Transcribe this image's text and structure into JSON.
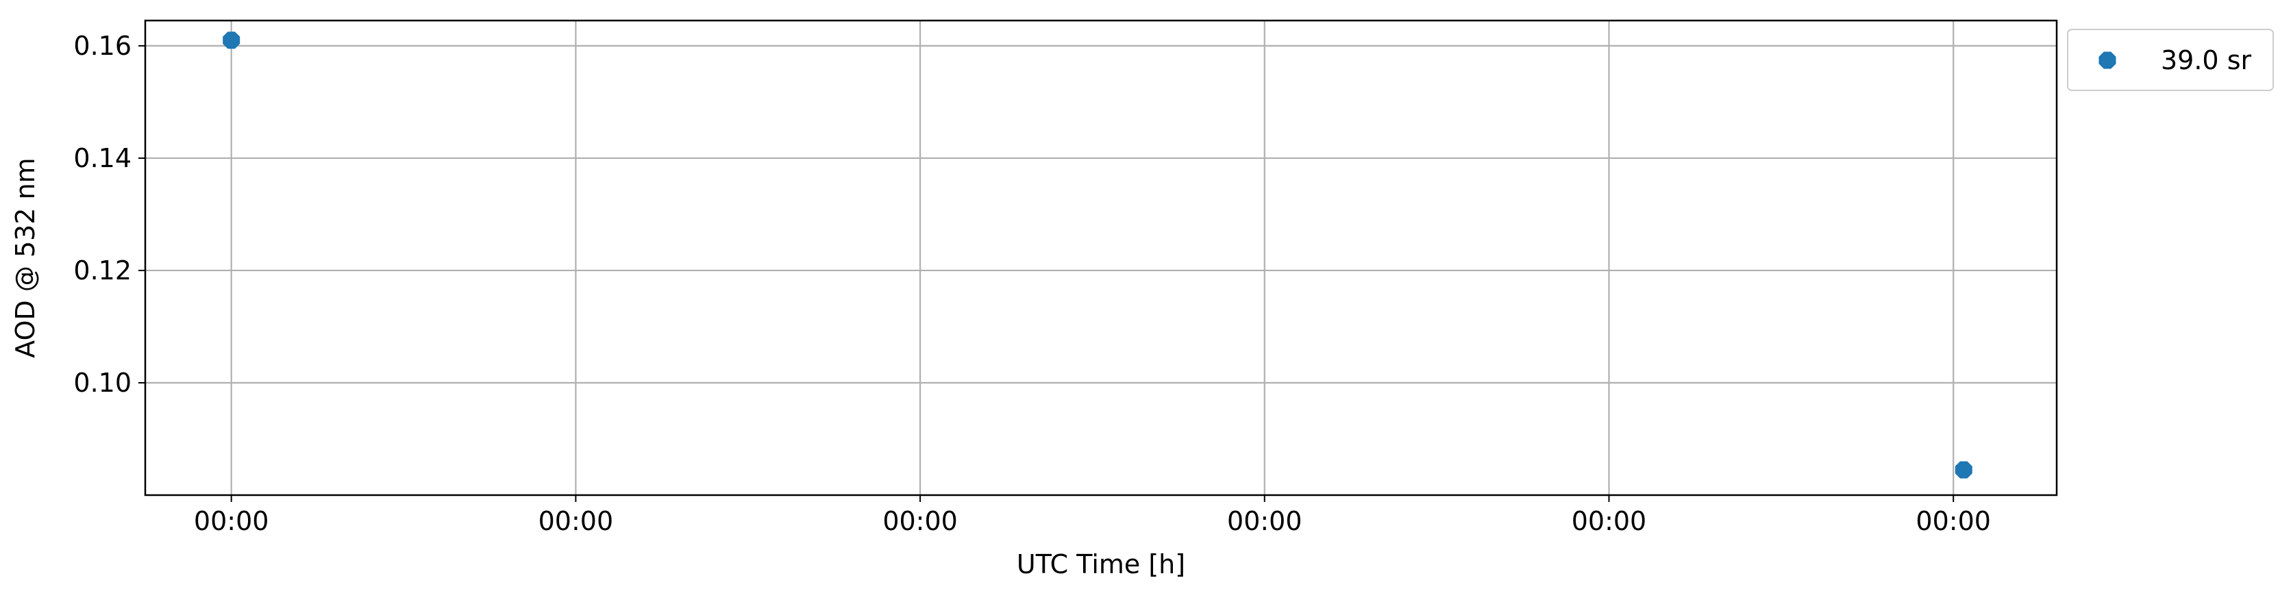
{
  "chart_data": {
    "type": "scatter",
    "title": "",
    "xlabel": "UTC Time [h]",
    "ylabel": "AOD @ 532 nm",
    "x_tick_labels": [
      "00:00",
      "00:00",
      "00:00",
      "00:00",
      "00:00",
      "00:00"
    ],
    "xlim": [
      -0.25,
      5.3
    ],
    "ylim": [
      0.08,
      0.1645
    ],
    "y_ticks": [
      0.1,
      0.12,
      0.14,
      0.16
    ],
    "y_tick_labels": [
      "0.10",
      "0.12",
      "0.14",
      "0.16"
    ],
    "grid": true,
    "legend_position": "outside-top-right",
    "series": [
      {
        "name": "39.0 sr",
        "color": "#1f77b4",
        "marker": "octagon",
        "points": [
          {
            "x": 0.0,
            "y": 0.161
          },
          {
            "x": 5.03,
            "y": 0.0845
          }
        ]
      }
    ]
  }
}
